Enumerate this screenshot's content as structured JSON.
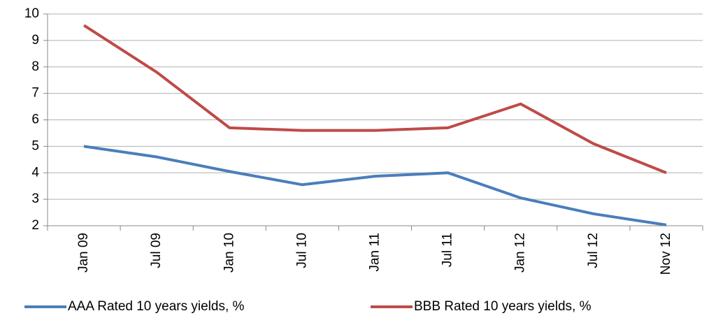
{
  "chart_data": {
    "type": "line",
    "categories": [
      "Jan 09",
      "Jul 09",
      "Jan 10",
      "Jul 10",
      "Jan 11",
      "Jul 11",
      "Jan 12",
      "Jul 12",
      "Nov 12"
    ],
    "series": [
      {
        "name": "AAA Rated 10 years yields, %",
        "color": "#4a7ebb",
        "values": [
          5.0,
          4.6,
          4.05,
          3.55,
          3.87,
          4.0,
          3.05,
          2.45,
          2.03
        ]
      },
      {
        "name": "BBB Rated 10 years yields, %",
        "color": "#be4b48",
        "values": [
          9.57,
          7.8,
          5.7,
          5.6,
          5.6,
          5.7,
          6.6,
          5.1,
          4.0
        ]
      }
    ],
    "ylim": [
      2,
      10
    ],
    "yticks": [
      2,
      3,
      4,
      5,
      6,
      7,
      8,
      9,
      10
    ],
    "grid": true,
    "legend": "bottom"
  }
}
